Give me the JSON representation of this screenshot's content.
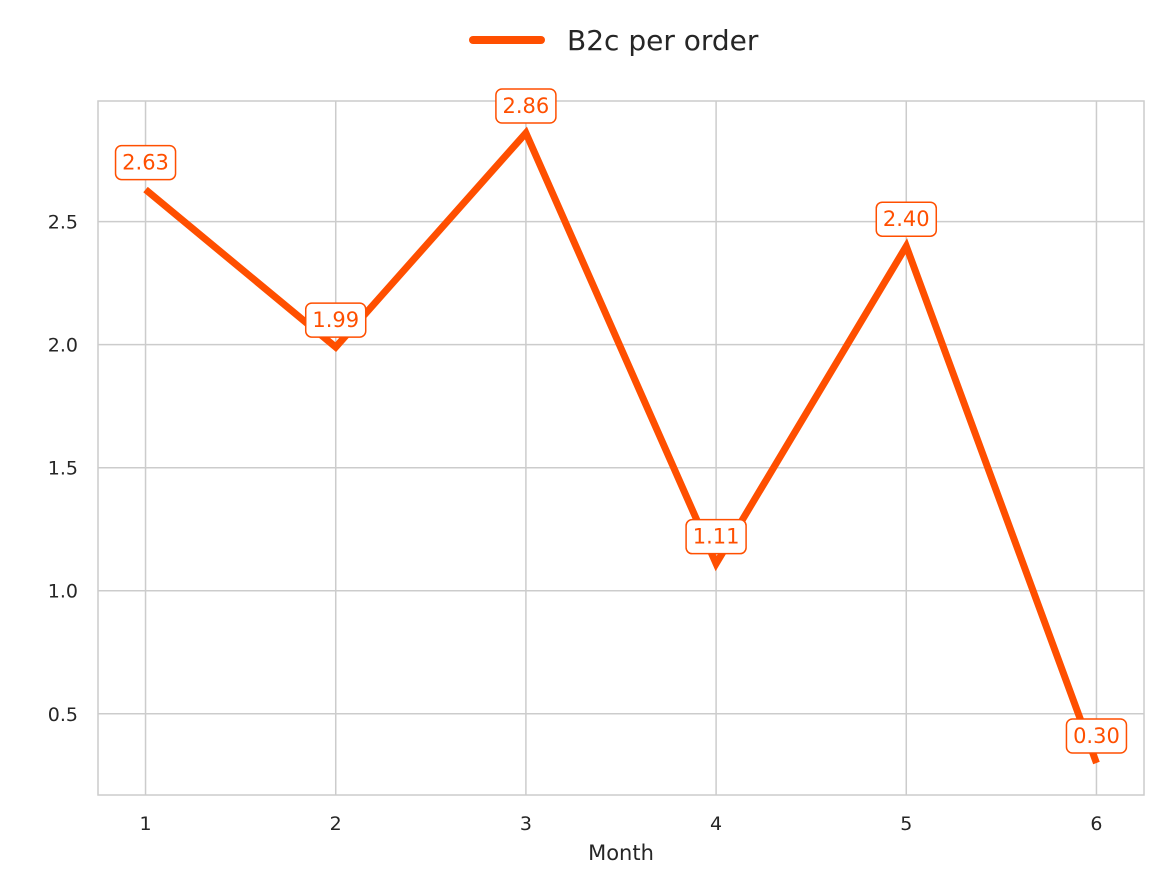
{
  "chart_data": {
    "type": "line",
    "title": "",
    "xlabel": "Month",
    "ylabel": "",
    "x": [
      1,
      2,
      3,
      4,
      5,
      6
    ],
    "x_ticks": [
      "1",
      "2",
      "3",
      "4",
      "5",
      "6"
    ],
    "y_ticks": [
      "0.5",
      "1.0",
      "1.5",
      "2.0",
      "2.5"
    ],
    "y_tick_values": [
      0.5,
      1.0,
      1.5,
      2.0,
      2.5
    ],
    "xlim": [
      0.75,
      6.25
    ],
    "ylim": [
      0.17,
      2.99
    ],
    "grid": true,
    "legend_position": "top-center",
    "series": [
      {
        "name": "B2c per order",
        "color": "#ff4f00",
        "values": [
          2.63,
          1.99,
          2.86,
          1.11,
          2.4,
          0.3
        ],
        "labels": [
          "2.63",
          "1.99",
          "2.86",
          "1.11",
          "2.40",
          "0.30"
        ]
      }
    ]
  }
}
